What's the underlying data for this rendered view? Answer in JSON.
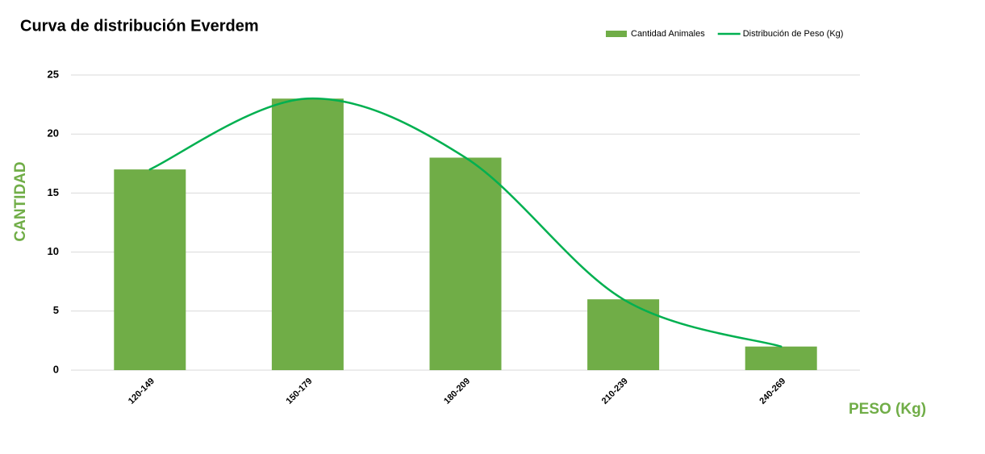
{
  "chart_data": {
    "type": "combo",
    "title": "Curva de distribución Everdem",
    "y_label": "CANTIDAD",
    "x_label": "PESO (Kg)",
    "categories": [
      "120-149",
      "150-179",
      "180-209",
      "210-239",
      "240-269"
    ],
    "series": [
      {
        "name": "Cantidad Animales",
        "type": "bar",
        "color": "#70ad47",
        "values": [
          17,
          23,
          18,
          6,
          2
        ]
      },
      {
        "name": "Distribución de Peso (Kg)",
        "type": "line",
        "smooth": true,
        "color": "#00b050",
        "values": [
          17,
          23,
          18,
          6,
          2
        ]
      }
    ],
    "ylim": [
      0,
      25
    ],
    "yticks": [
      0,
      5,
      10,
      15,
      20,
      25
    ],
    "grid": true,
    "legend": "top-right"
  }
}
